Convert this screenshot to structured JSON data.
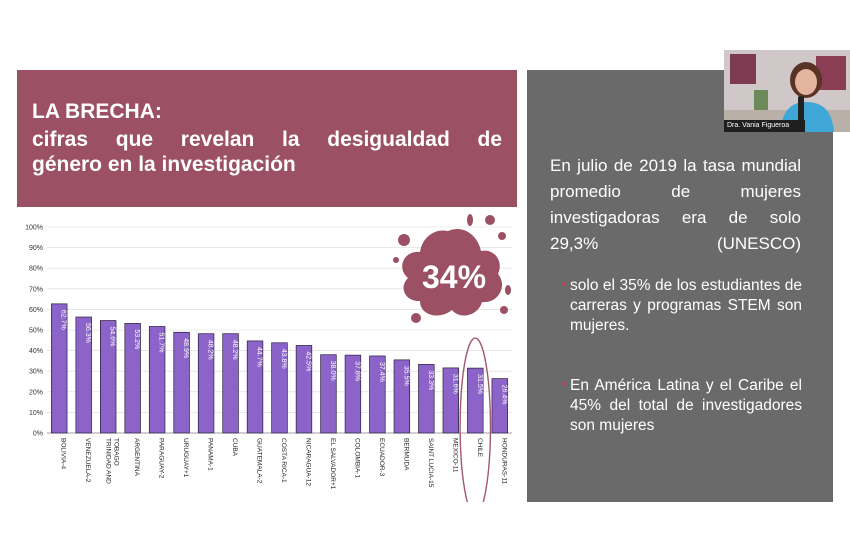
{
  "title": {
    "line1": "LA BRECHA:",
    "line2": "cifras que revelan la desigualdad de",
    "line3": "género en la investigación"
  },
  "highlight": "34%",
  "colors": {
    "title_bg": "#9c5063",
    "bar_fill": "#8c64c9",
    "bar_stroke": "#2a1f3a",
    "right_panel_bg": "#6a6a6a",
    "highlight_ellipse": "#a3586b",
    "bullet_dot": "#d9364d"
  },
  "right_panel": {
    "main_text": "En julio de 2019 la tasa mundial promedio de mujeres investigadoras era de solo 29,3% (UNESCO)",
    "bullets": [
      "solo el 35% de los estudiantes de carreras y programas STEM son mujeres.",
      "En América Latina y el Caribe el 45% del total de investigadores son mujeres"
    ]
  },
  "webcam": {
    "label": "Dra. Vania Figueroa"
  },
  "chart_data": {
    "type": "bar",
    "categories": [
      "BOLIVIA-4",
      "VENEZUELA-2",
      "TRINIDAD AND TOBAGO",
      "ARGENTINA",
      "PARAGUAY-2",
      "URUGUAY+1",
      "PANAMA-1",
      "CUBA",
      "GUATEMALA-2",
      "COSTA RICA-1",
      "NICARAGUA-12",
      "EL SALVADOR+1",
      "COLOMBIA-1",
      "ECUADOR-3",
      "BERMUDA",
      "SAINT LUCIA-15",
      "MEXICO-11",
      "CHILE",
      "HONDURAS-11"
    ],
    "values": [
      62.7,
      56.3,
      54.6,
      53.2,
      51.7,
      48.9,
      48.2,
      48.2,
      44.7,
      43.8,
      42.5,
      38.0,
      37.8,
      37.4,
      35.5,
      33.3,
      31.6,
      31.5,
      26.4
    ],
    "value_labels": [
      "62.7%",
      "56.3%",
      "54.6%",
      "53.2%",
      "51.7%",
      "48.9%",
      "48.2%",
      "48.2%",
      "44.7%",
      "43.8%",
      "42.5%",
      "38.0%",
      "37.8%",
      "37.4%",
      "35.5%",
      "33.3%",
      "31.6%",
      "31.5%",
      "26.4%"
    ],
    "y_ticks": [
      "0%",
      "10%",
      "20%",
      "30%",
      "40%",
      "50%",
      "60%",
      "70%",
      "80%",
      "90%",
      "100%"
    ],
    "ylim": [
      0,
      100
    ],
    "grid": true,
    "highlighted_category": "CHILE",
    "title": "",
    "xlabel": "",
    "ylabel": ""
  }
}
